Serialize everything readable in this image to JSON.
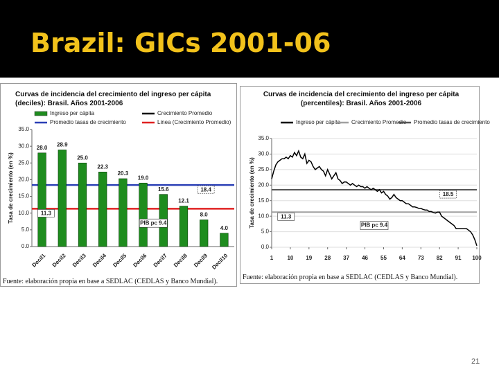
{
  "slide": {
    "title": "Brazil: GICs 2001-06",
    "page": "21"
  },
  "chart_data": [
    {
      "type": "bar",
      "title": "Curvas de incidencia del crecimiento del ingreso per cápita (deciles): Brasil. Años 2001-2006",
      "ylabel": "Tasa de crecimiento (en %)",
      "categories": [
        "Decil1",
        "Decil2",
        "Decil3",
        "Decil4",
        "Decil5",
        "Decil6",
        "Decil7",
        "Decil8",
        "Decil9",
        "Decil10"
      ],
      "series": [
        {
          "name": "Ingreso per cápita",
          "color": "#1e8c1e",
          "values": [
            28.0,
            28.9,
            25.0,
            22.3,
            20.3,
            19.0,
            15.6,
            12.1,
            8.0,
            4.0
          ],
          "value_labels": [
            "28.0",
            "28.9",
            "25.0",
            "22.3",
            "20.3",
            "19.0",
            "15.6",
            "12.1",
            "8.0",
            "4.0"
          ]
        }
      ],
      "reference_lines": [
        {
          "name": "Crecimiento Promedio",
          "color": "#000000"
        },
        {
          "name": "Promedio tasas de crecimiento",
          "color": "#2a3fb5",
          "value": 18.4
        },
        {
          "name": "Linea (Crecimiento Promedio)",
          "color": "#e02020",
          "value": 11.3
        }
      ],
      "annotation": "PIB pc 9.4",
      "ylim": [
        0,
        35
      ],
      "yticks": [
        {
          "value": 0,
          "label": "0.0"
        },
        {
          "value": 5,
          "label": "5.0"
        },
        {
          "value": 10,
          "label": "10.0"
        },
        {
          "value": 15,
          "label": "15.0"
        },
        {
          "value": 20,
          "label": "20.0"
        },
        {
          "value": 25,
          "label": "25.0"
        },
        {
          "value": 30,
          "label": "30.0"
        },
        {
          "value": 35,
          "label": "35.0"
        }
      ],
      "grid": false,
      "source": "Fuente: elaboración propia en base a SEDLAC (CEDLAS y Banco Mundial)."
    },
    {
      "type": "line",
      "title": "Curvas de incidencia del crecimiento del ingreso per cápita (percentiles): Brasil. Años 2001-2006",
      "ylabel": "Tasa de crecimiento (en %)",
      "x": [
        1,
        2,
        3,
        4,
        5,
        6,
        7,
        8,
        9,
        10,
        11,
        12,
        13,
        14,
        15,
        16,
        17,
        18,
        19,
        20,
        21,
        22,
        23,
        24,
        25,
        26,
        27,
        28,
        29,
        30,
        31,
        32,
        33,
        34,
        35,
        36,
        37,
        38,
        39,
        40,
        41,
        42,
        43,
        44,
        45,
        46,
        47,
        48,
        49,
        50,
        51,
        52,
        53,
        54,
        55,
        56,
        57,
        58,
        59,
        60,
        61,
        62,
        63,
        64,
        65,
        66,
        67,
        68,
        69,
        70,
        71,
        72,
        73,
        74,
        75,
        76,
        77,
        78,
        79,
        80,
        81,
        82,
        83,
        84,
        85,
        86,
        87,
        88,
        89,
        90,
        91,
        92,
        93,
        94,
        95,
        96,
        97,
        98,
        99,
        100
      ],
      "series": [
        {
          "name": "Ingreso per cápita",
          "color": "#000000",
          "values": [
            22.0,
            24.5,
            26.5,
            27.5,
            28.0,
            28.5,
            28.5,
            29.0,
            28.5,
            29.5,
            29.0,
            30.5,
            29.5,
            31.0,
            29.0,
            28.5,
            30.0,
            27.0,
            28.0,
            27.5,
            26.0,
            25.0,
            25.5,
            26.0,
            25.0,
            24.5,
            23.0,
            25.0,
            23.5,
            22.0,
            23.0,
            24.0,
            22.0,
            21.5,
            20.5,
            21.0,
            21.0,
            20.5,
            20.0,
            20.5,
            20.0,
            19.5,
            20.0,
            19.5,
            19.5,
            19.0,
            19.5,
            19.0,
            18.5,
            19.0,
            18.5,
            18.0,
            18.5,
            17.5,
            18.0,
            17.0,
            16.5,
            15.5,
            16.0,
            17.0,
            16.0,
            15.5,
            15.0,
            15.0,
            14.5,
            14.0,
            14.0,
            13.5,
            13.0,
            13.0,
            12.8,
            12.5,
            12.5,
            12.2,
            12.0,
            12.0,
            11.5,
            11.5,
            11.2,
            11.0,
            11.3,
            11.3,
            10.0,
            9.5,
            9.0,
            8.5,
            8.0,
            7.5,
            7.0,
            6.0,
            6.0,
            6.0,
            6.0,
            6.0,
            6.0,
            5.5,
            5.0,
            4.0,
            2.5,
            0.5
          ]
        }
      ],
      "reference_lines": [
        {
          "name": "Crecimiento Promedio",
          "color": "#a0a0a0",
          "value": 11.3
        },
        {
          "name": "Promedio tasas de crecimiento",
          "color": "#555555",
          "value": 18.5
        }
      ],
      "annotation": "PIB pc 9.4",
      "xlim": [
        1,
        100
      ],
      "xticks": [
        1,
        10,
        19,
        28,
        37,
        46,
        55,
        64,
        73,
        82,
        91,
        100
      ],
      "ylim": [
        0,
        35
      ],
      "yticks": [
        {
          "value": 0,
          "label": "0.0"
        },
        {
          "value": 5,
          "label": "5.0"
        },
        {
          "value": 10,
          "label": "10.0"
        },
        {
          "value": 15,
          "label": "15.0"
        },
        {
          "value": 20,
          "label": "20.0"
        },
        {
          "value": 25,
          "label": "25.0"
        },
        {
          "value": 30,
          "label": "30.0"
        },
        {
          "value": 35,
          "label": "35.0"
        }
      ],
      "grid": true,
      "source": "Fuente: elaboración propia en base a SEDLAC (CEDLAS y Banco Mundial)."
    }
  ]
}
